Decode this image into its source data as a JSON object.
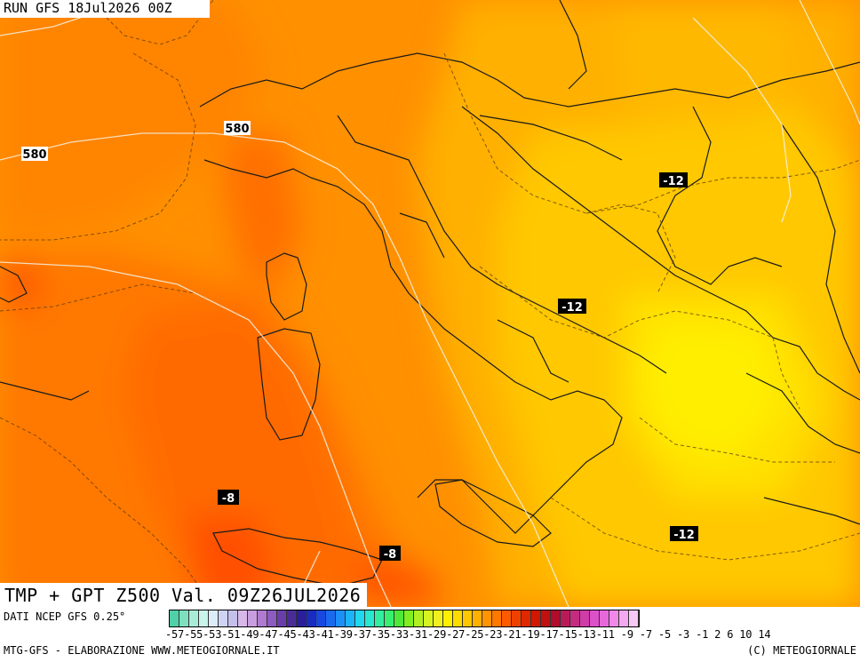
{
  "header": {
    "run_label": "RUN GFS 18Jul2026 00Z"
  },
  "title": "TMP + GPT Z500 Val. 09Z26JUL2026",
  "footer": {
    "source": "DATI NCEP GFS 0.25°",
    "credit_left": "MTG-GFS - ELABORAZIONE WWW.METEOGIORNALE.IT",
    "credit_right": "(C) METEOGIORNALE",
    "scale_ticks": "-57-55-53-51-49-47-45-43-41-39-37-35-33-31-29-27-25-23-21-19-17-15-13-11 -9 -7 -5 -3 -1  2  6 10 14",
    "colorbar_colors": [
      "#4fd0a8",
      "#7fe0c0",
      "#a8ecd8",
      "#c8f4ea",
      "#dcecf8",
      "#d0d4f4",
      "#c4c0ec",
      "#d8b8e8",
      "#c89ee0",
      "#b07ad0",
      "#8c5cc0",
      "#6a3ea8",
      "#4a2c98",
      "#2a1e9a",
      "#1a2cc0",
      "#1848e0",
      "#1a6af0",
      "#1c90f8",
      "#1cb4f8",
      "#20d8f0",
      "#28e8d0",
      "#30f0a0",
      "#38f070",
      "#50e838",
      "#80ee20",
      "#b0f020",
      "#d8f420",
      "#f0f020",
      "#fff000",
      "#ffdc00",
      "#ffc800",
      "#ffb000",
      "#ff9400",
      "#ff7800",
      "#ff5a00",
      "#f04000",
      "#e02800",
      "#d01800",
      "#c01010",
      "#b00c2c",
      "#b81c58",
      "#c42c80",
      "#d03ca8",
      "#dc50c8",
      "#e868dc",
      "#f088e8",
      "#f4a8f0",
      "#f8c8f4"
    ]
  },
  "map": {
    "labels": {
      "z580_west": "580",
      "z580_alps": "580",
      "t_minus12_ne": "-12",
      "t_minus12_c": "-12",
      "t_minus12_se": "-12",
      "t_minus8_sw": "-8",
      "t_minus8_s": "-8"
    }
  }
}
